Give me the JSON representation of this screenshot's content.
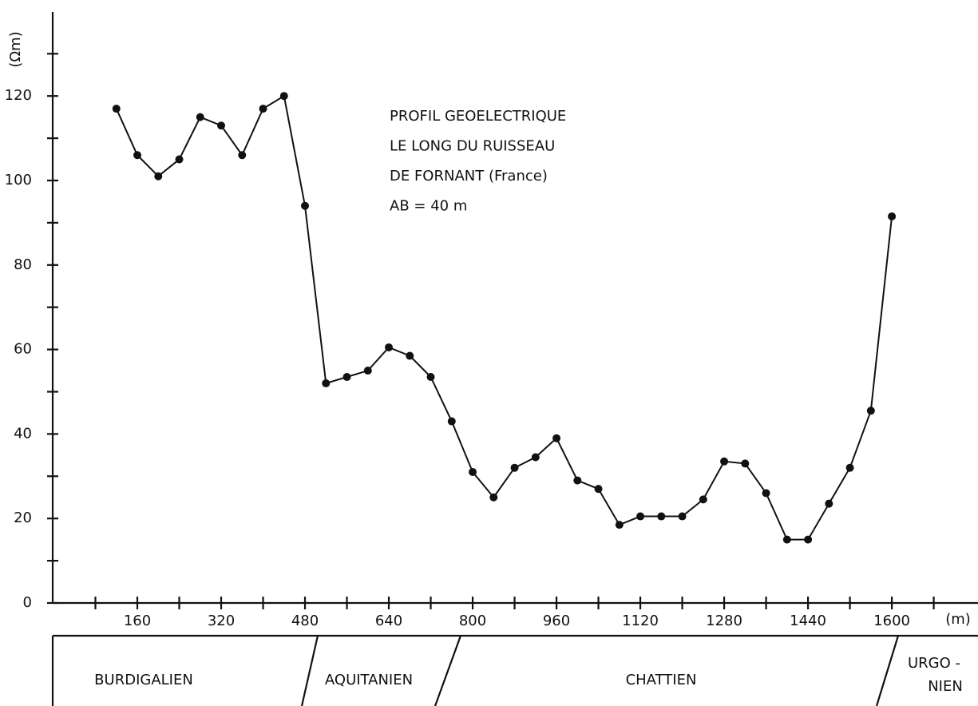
{
  "chart_data": {
    "type": "line",
    "y_label": "(Ωm)",
    "x_label": "(m)",
    "annotations": [
      "PROFIL GEOELECTRIQUE",
      "LE LONG DU RUISSEAU",
      "DE FORNANT (France)",
      "AB = 40 m"
    ],
    "x": [
      120,
      160,
      200,
      240,
      280,
      320,
      360,
      400,
      440,
      480,
      520,
      560,
      600,
      640,
      680,
      720,
      760,
      800,
      840,
      880,
      920,
      960,
      1000,
      1040,
      1080,
      1120,
      1160,
      1200,
      1240,
      1280,
      1320,
      1360,
      1400,
      1440,
      1480,
      1520,
      1560,
      1600
    ],
    "series": [
      {
        "color": "#111111",
        "values": [
          117,
          106,
          101,
          105,
          115,
          113,
          106,
          117,
          120,
          94,
          52,
          53.5,
          55,
          60.5,
          58.5,
          53.5,
          43,
          31,
          25,
          32,
          34.5,
          39,
          29,
          27,
          18.5,
          20.5,
          20.5,
          20.5,
          24.5,
          33.5,
          33,
          26,
          15,
          15,
          23.5,
          32,
          45.5,
          91.5
        ]
      }
    ],
    "xlim": [
      0,
      1765
    ],
    "ylim": [
      0,
      140
    ],
    "xticks": [
      160,
      320,
      480,
      640,
      800,
      960,
      1120,
      1280,
      1440,
      1600
    ],
    "xticks_minor": [
      80,
      240,
      400,
      560,
      720,
      880,
      1040,
      1200,
      1360,
      1520,
      1680
    ],
    "yticks": [
      0,
      20,
      40,
      60,
      80,
      100,
      120
    ],
    "yticks_minor": [
      10,
      30,
      50,
      70,
      90,
      110,
      130
    ],
    "stages": [
      [
        "BURDIGALIEN"
      ],
      [
        "AQUITANIEN"
      ],
      [
        "CHATTIEN"
      ],
      [
        "URGO -",
        "NIEN"
      ]
    ]
  }
}
